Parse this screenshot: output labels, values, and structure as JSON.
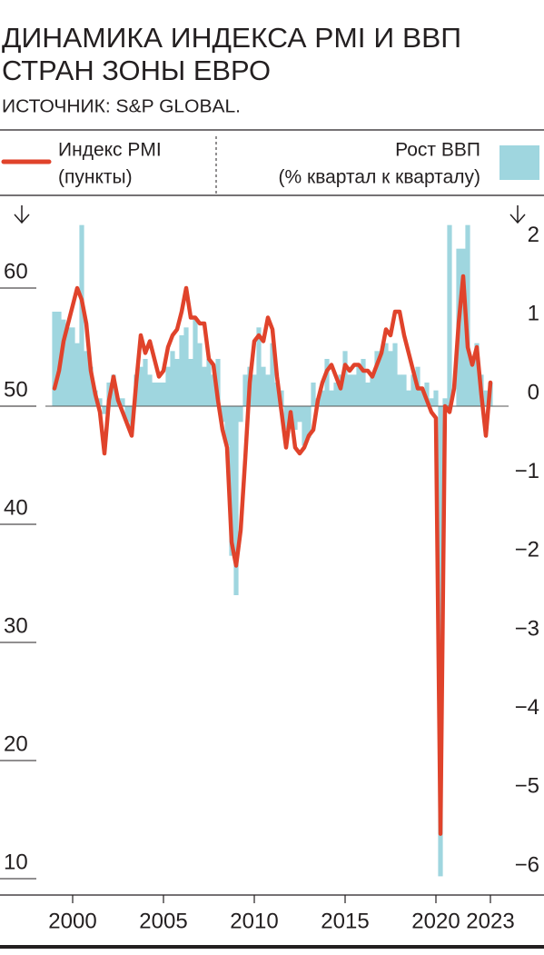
{
  "chart_data": {
    "type": "combo",
    "title": [
      "ДИНАМИКА ИНДЕКСА PMI И ВВП",
      "СТРАН ЗОНЫ ЕВРО"
    ],
    "subtitle": "ИСТОЧНИК: S&P GLOBAL.",
    "x": [
      1999,
      1999.25,
      1999.5,
      1999.75,
      2000,
      2000.25,
      2000.5,
      2000.75,
      2001,
      2001.25,
      2001.5,
      2001.75,
      2002,
      2002.25,
      2002.5,
      2002.75,
      2003,
      2003.25,
      2003.5,
      2003.75,
      2004,
      2004.25,
      2004.5,
      2004.75,
      2005,
      2005.25,
      2005.5,
      2005.75,
      2006,
      2006.25,
      2006.5,
      2006.75,
      2007,
      2007.25,
      2007.5,
      2007.75,
      2008,
      2008.25,
      2008.5,
      2008.75,
      2009,
      2009.25,
      2009.5,
      2009.75,
      2010,
      2010.25,
      2010.5,
      2010.75,
      2011,
      2011.25,
      2011.5,
      2011.75,
      2012,
      2012.25,
      2012.5,
      2012.75,
      2013,
      2013.25,
      2013.5,
      2013.75,
      2014,
      2014.25,
      2014.5,
      2014.75,
      2015,
      2015.25,
      2015.5,
      2015.75,
      2016,
      2016.25,
      2016.5,
      2016.75,
      2017,
      2017.25,
      2017.5,
      2017.75,
      2018,
      2018.25,
      2018.5,
      2018.75,
      2019,
      2019.25,
      2019.5,
      2019.75,
      2020,
      2020.25,
      2020.5,
      2020.75,
      2021,
      2021.25,
      2021.5,
      2021.75,
      2022,
      2022.25,
      2022.5,
      2022.75,
      2023
    ],
    "series": [
      {
        "name": "Индекс PMI",
        "unit": "(пункты)",
        "type": "line",
        "axis": "y",
        "color": "#e0432b",
        "values": [
          51.5,
          53,
          55.5,
          57,
          58.5,
          60,
          59,
          57,
          53,
          51,
          49.5,
          46,
          50.5,
          52.5,
          50.5,
          49.5,
          48.5,
          47.5,
          52,
          56,
          54.5,
          55.5,
          54,
          52.5,
          53,
          55,
          56,
          56.5,
          58,
          60,
          57.5,
          57.5,
          57,
          57,
          54,
          53.5,
          50.5,
          48,
          46.5,
          38.5,
          36.5,
          39.5,
          45.5,
          52,
          55.5,
          56,
          55.5,
          57.5,
          56.5,
          52.5,
          49.5,
          46.5,
          49.5,
          46.5,
          46,
          46.5,
          47.5,
          48,
          50.5,
          52,
          53,
          53.5,
          52.5,
          51.5,
          53.5,
          53,
          53.5,
          53.5,
          53,
          53,
          52.5,
          53.5,
          54.5,
          56.5,
          56,
          58,
          58,
          56,
          54.5,
          53,
          51.5,
          51.5,
          50.5,
          49.5,
          49,
          13.8,
          50,
          49.5,
          51.5,
          57,
          61,
          55,
          53.5,
          55,
          51,
          47.5,
          52
        ]
      },
      {
        "name": "Рост ВВП",
        "unit": "(% квартал к кварталу)",
        "type": "bar",
        "axis": "y2",
        "color": "#9fd6df",
        "values": [
          1.2,
          1.2,
          1.1,
          1.0,
          1.0,
          0.8,
          2.3,
          0.7,
          0.5,
          0.2,
          0.1,
          -0.1,
          0.3,
          0.4,
          0.1,
          0.1,
          -0.2,
          -0.3,
          0.4,
          0.5,
          0.6,
          0.4,
          0.3,
          0.3,
          0.3,
          0.5,
          0.7,
          0.6,
          0.9,
          1.0,
          0.6,
          1.1,
          0.8,
          0.5,
          0.6,
          0.4,
          0.6,
          -0.2,
          -0.5,
          -1.9,
          -2.4,
          -0.2,
          0.4,
          0.5,
          0.4,
          1.0,
          0.5,
          0.4,
          0.8,
          0.3,
          0.2,
          -0.3,
          -0.1,
          -0.3,
          -0.2,
          -0.5,
          -0.4,
          0.3,
          0.1,
          0.2,
          0.6,
          0.2,
          0.3,
          0.4,
          0.7,
          0.4,
          0.4,
          0.5,
          0.6,
          0.3,
          0.4,
          0.7,
          0.7,
          0.8,
          0.7,
          0.8,
          0.4,
          0.4,
          0.2,
          0.4,
          0.5,
          0.2,
          0.3,
          0.1,
          0.2,
          -5.97,
          0.1,
          2.3,
          0.0,
          2.0,
          2.0,
          2.3,
          0.6,
          0.8,
          0.4,
          0.2,
          0.3
        ]
      }
    ],
    "xlim": [
      1998.5,
      2024
    ],
    "xticks": [
      2000,
      2005,
      2010,
      2015,
      2020,
      2023
    ],
    "ylim": [
      10,
      64
    ],
    "yticks": [
      10,
      20,
      30,
      40,
      50,
      60
    ],
    "y2lim": [
      -6,
      2.1
    ],
    "y2ticks": [
      2,
      1,
      0,
      {
        "value": -1,
        "label": "−1"
      },
      {
        "value": -2,
        "label": "−2"
      },
      {
        "value": -3,
        "label": "−3"
      },
      {
        "value": -4,
        "label": "−4"
      },
      {
        "value": -5,
        "label": "−5"
      },
      {
        "value": -6,
        "label": "−6"
      }
    ]
  }
}
